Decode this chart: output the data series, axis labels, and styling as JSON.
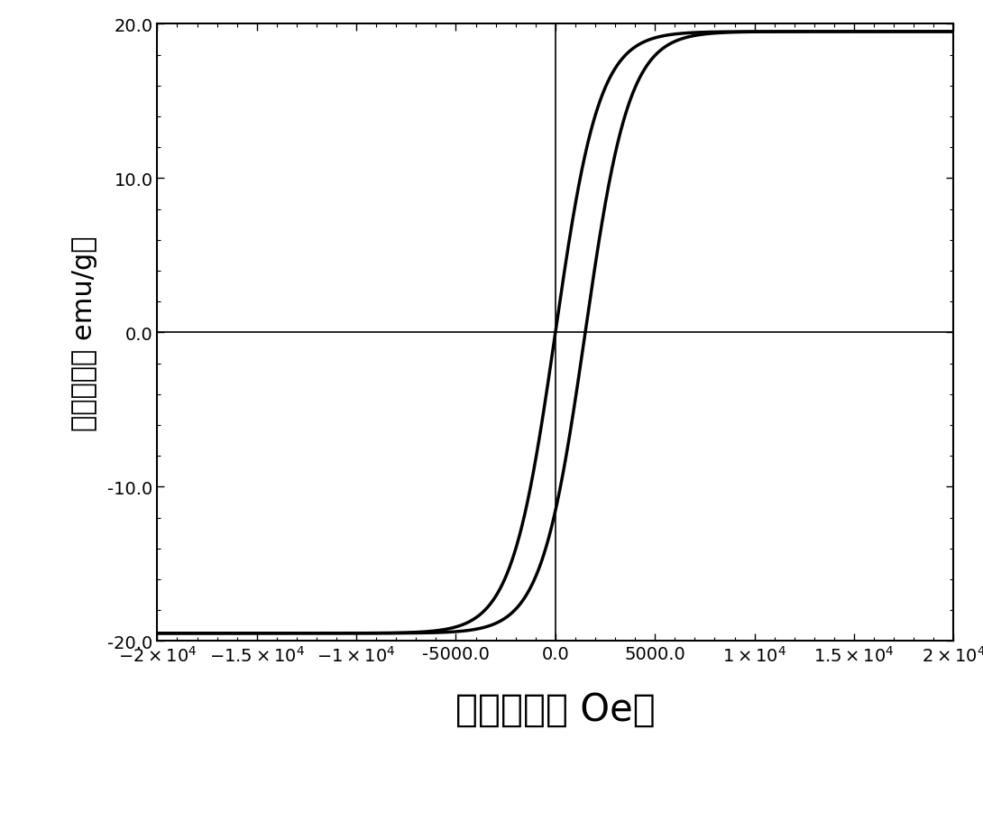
{
  "xlim": [
    -20000,
    20000
  ],
  "ylim": [
    -20.0,
    20.0
  ],
  "xticks": [
    -20000,
    -15000,
    -10000,
    -5000,
    0,
    5000,
    10000,
    15000,
    20000
  ],
  "yticks": [
    -20.0,
    -10.0,
    0.0,
    10.0,
    20.0
  ],
  "xlabel": "磁场强度［ Oe］",
  "ylabel": "磁化强度［ emu/g］",
  "saturation": 19.5,
  "curve1_shift": 0,
  "curve2_shift": 1500,
  "tanh_scale": 2200,
  "bg_color": "#ffffff",
  "line_color": "#000000",
  "line_width": 2.5,
  "xlabel_fontsize": 30,
  "ylabel_fontsize": 22,
  "tick_fontsize": 14
}
